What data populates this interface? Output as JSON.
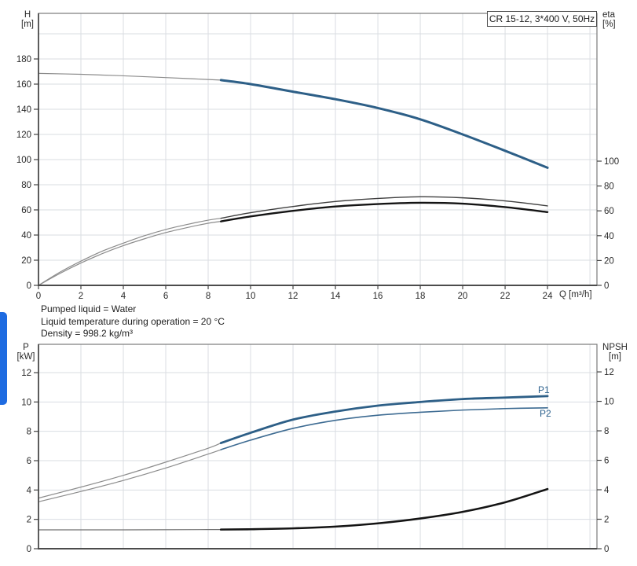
{
  "page": {
    "background": "#ffffff",
    "colors": {
      "grid": "#dadde2",
      "plot_border": "#7a7a7a",
      "axis_dark": "#4c4c4c",
      "tick": "#444444",
      "text": "#2a2a2a",
      "curve_blue": "#2d5f87",
      "side_tab_blue": "#1e6be1"
    }
  },
  "side_tab": {
    "label": "browser-side-panel-tab"
  },
  "between_charts_info": {
    "lines": [
      "Pumped liquid = Water",
      "Liquid temperature during operation = 20 °C",
      "Density = 998.2 kg/m³"
    ]
  },
  "chart_data": [
    {
      "id": "head_efficiency_chart",
      "type": "line",
      "title": "CR 15-12, 3*400 V, 50Hz",
      "x_axis": {
        "label": "Q [m³/h]",
        "range": [
          0,
          26.33
        ],
        "tick_values": [
          0,
          2,
          4,
          6,
          8,
          10,
          12,
          14,
          16,
          18,
          20,
          22,
          24
        ],
        "grid_values": [
          2,
          4,
          6,
          8,
          10,
          12,
          14,
          16,
          18,
          20,
          22,
          24,
          26
        ]
      },
      "y_left": {
        "label_top": "H",
        "label_unit": "[m]",
        "range": [
          0,
          216.25
        ],
        "tick_values": [
          0,
          20,
          40,
          60,
          80,
          100,
          120,
          140,
          160,
          180
        ],
        "grid_values": [
          20,
          40,
          60,
          80,
          100,
          120,
          140,
          160,
          180,
          200
        ]
      },
      "y_right": {
        "label_top": "eta",
        "label_unit": "[%]",
        "range": [
          0,
          219
        ],
        "tick_values": [
          0,
          20,
          40,
          60,
          80,
          100
        ]
      },
      "series": [
        {
          "name": "head-curve-out-of-range",
          "axis": "left",
          "color": "#8c8c8c",
          "width": 1.2,
          "points": [
            [
              0,
              168.5
            ],
            [
              2,
              167.8
            ],
            [
              4,
              166.6
            ],
            [
              6,
              165.2
            ],
            [
              7.3,
              164.2
            ],
            [
              8.6,
              163.2
            ]
          ]
        },
        {
          "name": "head-curve",
          "axis": "left",
          "color": "#2d5f87",
          "width": 3,
          "points": [
            [
              8.6,
              163.2
            ],
            [
              10,
              160
            ],
            [
              12,
              154
            ],
            [
              14,
              148
            ],
            [
              16,
              141
            ],
            [
              18,
              132
            ],
            [
              20,
              120
            ],
            [
              22,
              107
            ],
            [
              24,
              93.5
            ]
          ]
        },
        {
          "name": "efficiency-curve-1-out-of-range",
          "axis": "right",
          "color": "#8c8c8c",
          "width": 1.2,
          "points": [
            [
              0,
              0
            ],
            [
              1,
              10.5
            ],
            [
              2,
              19.5
            ],
            [
              3,
              27.5
            ],
            [
              4,
              34
            ],
            [
              5,
              40
            ],
            [
              6,
              45
            ],
            [
              7,
              49
            ],
            [
              8,
              52.5
            ],
            [
              8.6,
              54
            ]
          ]
        },
        {
          "name": "efficiency-curve-1",
          "axis": "right",
          "color": "#3f3f3f",
          "width": 1.4,
          "points": [
            [
              8.6,
              54
            ],
            [
              10,
              58.5
            ],
            [
              12,
              63.5
            ],
            [
              14,
              67.5
            ],
            [
              16,
              70
            ],
            [
              18,
              71.3
            ],
            [
              20,
              70.5
            ],
            [
              22,
              68
            ],
            [
              24,
              64
            ]
          ]
        },
        {
          "name": "efficiency-curve-2-out-of-range",
          "axis": "right",
          "color": "#8c8c8c",
          "width": 1.2,
          "points": [
            [
              0,
              0
            ],
            [
              1,
              9.5
            ],
            [
              2,
              18
            ],
            [
              3,
              25.5
            ],
            [
              4,
              32
            ],
            [
              5,
              37.5
            ],
            [
              6,
              42.5
            ],
            [
              7,
              46.5
            ],
            [
              8,
              50
            ],
            [
              8.6,
              51.5
            ]
          ]
        },
        {
          "name": "efficiency-curve-2",
          "axis": "right",
          "color": "#141414",
          "width": 2.4,
          "points": [
            [
              8.6,
              51.5
            ],
            [
              10,
              55.5
            ],
            [
              12,
              60
            ],
            [
              14,
              63.5
            ],
            [
              16,
              65.5
            ],
            [
              18,
              66.5
            ],
            [
              20,
              65.8
            ],
            [
              22,
              63
            ],
            [
              24,
              59
            ]
          ]
        }
      ]
    },
    {
      "id": "power_npsh_chart",
      "type": "line",
      "x_axis": {
        "label": "",
        "range": [
          0,
          26.33
        ],
        "tick_values": [],
        "grid_values": [
          2,
          4,
          6,
          8,
          10,
          12,
          14,
          16,
          18,
          20,
          22,
          24,
          26
        ]
      },
      "y_left": {
        "label_top": "P",
        "label_unit": "[kW]",
        "range": [
          0,
          13.93
        ],
        "tick_values": [
          0,
          2,
          4,
          6,
          8,
          10,
          12
        ],
        "grid_values": [
          2,
          4,
          6,
          8,
          10,
          12
        ]
      },
      "y_right": {
        "label_top": "NPSH",
        "label_unit": "[m]",
        "range": [
          0,
          13.87
        ],
        "tick_values": [
          0,
          2,
          4,
          6,
          8,
          10,
          12
        ]
      },
      "series": [
        {
          "name": "p1-curve-out-of-range",
          "axis": "left",
          "color": "#8c8c8c",
          "width": 1.2,
          "points": [
            [
              0,
              3.45
            ],
            [
              2,
              4.2
            ],
            [
              4,
              5.0
            ],
            [
              6,
              5.9
            ],
            [
              8,
              6.85
            ],
            [
              8.6,
              7.2
            ]
          ]
        },
        {
          "name": "p1-curve",
          "axis": "left",
          "color": "#2d5f87",
          "width": 2.8,
          "points": [
            [
              8.6,
              7.2
            ],
            [
              10,
              7.9
            ],
            [
              12,
              8.8
            ],
            [
              14,
              9.35
            ],
            [
              16,
              9.75
            ],
            [
              18,
              10.0
            ],
            [
              20,
              10.2
            ],
            [
              22,
              10.3
            ],
            [
              24,
              10.4
            ]
          ]
        },
        {
          "name": "p2-curve-out-of-range",
          "axis": "left",
          "color": "#8c8c8c",
          "width": 1.2,
          "points": [
            [
              0,
              3.2
            ],
            [
              2,
              3.9
            ],
            [
              4,
              4.65
            ],
            [
              6,
              5.5
            ],
            [
              8,
              6.45
            ],
            [
              8.6,
              6.75
            ]
          ]
        },
        {
          "name": "p2-curve",
          "axis": "left",
          "color": "#3d6b92",
          "width": 1.6,
          "points": [
            [
              8.6,
              6.75
            ],
            [
              10,
              7.4
            ],
            [
              12,
              8.2
            ],
            [
              14,
              8.75
            ],
            [
              16,
              9.1
            ],
            [
              18,
              9.3
            ],
            [
              20,
              9.45
            ],
            [
              22,
              9.55
            ],
            [
              24,
              9.6
            ]
          ]
        },
        {
          "name": "npsh-curve-out-of-range",
          "axis": "right",
          "color": "#6f6f6f",
          "width": 1.2,
          "points": [
            [
              0,
              1.28
            ],
            [
              4,
              1.28
            ],
            [
              8,
              1.3
            ],
            [
              8.6,
              1.3
            ]
          ]
        },
        {
          "name": "npsh-curve",
          "axis": "right",
          "color": "#141414",
          "width": 2.6,
          "points": [
            [
              8.6,
              1.3
            ],
            [
              10,
              1.32
            ],
            [
              12,
              1.38
            ],
            [
              14,
              1.5
            ],
            [
              16,
              1.72
            ],
            [
              18,
              2.05
            ],
            [
              20,
              2.5
            ],
            [
              22,
              3.15
            ],
            [
              24,
              4.05
            ]
          ]
        }
      ],
      "series_labels": [
        {
          "text": "P1"
        },
        {
          "text": "P2"
        }
      ]
    }
  ]
}
